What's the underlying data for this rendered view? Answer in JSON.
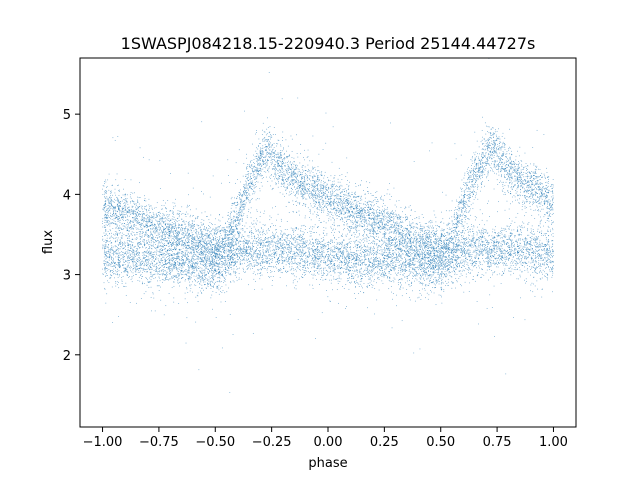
{
  "chart_data": {
    "type": "scatter",
    "title": "1SWASPJ084218.15-220940.3 Period 25144.44727s",
    "xlabel": "phase",
    "ylabel": "flux",
    "xlim": [
      -1.1,
      1.1
    ],
    "ylim": [
      1.1,
      5.7
    ],
    "xticks": [
      -1.0,
      -0.75,
      -0.5,
      -0.25,
      0.0,
      0.25,
      0.5,
      0.75,
      1.0
    ],
    "xtick_labels": [
      "−1.00",
      "−0.75",
      "−0.50",
      "−0.25",
      "0.00",
      "0.25",
      "0.50",
      "0.75",
      "1.00"
    ],
    "yticks": [
      2,
      3,
      4,
      5
    ],
    "ytick_labels": [
      "2",
      "3",
      "4",
      "5"
    ],
    "grid": false,
    "marker_color": "#1f77b4",
    "series": [
      {
        "component": "upper_branch",
        "x": [
          -1.0,
          -0.9,
          -0.8,
          -0.7,
          -0.6,
          -0.5,
          -0.45,
          -0.4,
          -0.35,
          -0.3,
          -0.27,
          -0.25,
          -0.2,
          -0.1,
          0.0,
          0.1,
          0.2,
          0.3,
          0.4,
          0.5,
          0.55,
          0.6,
          0.65,
          0.7,
          0.73,
          0.75,
          0.8,
          0.9,
          1.0
        ],
        "y": [
          3.85,
          3.75,
          3.65,
          3.55,
          3.45,
          3.35,
          3.4,
          3.75,
          4.15,
          4.45,
          4.55,
          4.5,
          4.3,
          4.1,
          3.95,
          3.8,
          3.7,
          3.55,
          3.4,
          3.35,
          3.45,
          3.85,
          4.25,
          4.5,
          4.55,
          4.5,
          4.3,
          4.1,
          3.9
        ]
      },
      {
        "component": "lower_branch",
        "x": [
          -1.0,
          -0.9,
          -0.8,
          -0.7,
          -0.6,
          -0.5,
          -0.4,
          -0.3,
          -0.2,
          -0.1,
          0.0,
          0.1,
          0.2,
          0.3,
          0.4,
          0.5,
          0.6,
          0.7,
          0.8,
          0.9,
          1.0
        ],
        "y": [
          3.25,
          3.2,
          3.2,
          3.18,
          3.12,
          3.1,
          3.3,
          3.32,
          3.3,
          3.28,
          3.25,
          3.2,
          3.18,
          3.18,
          3.12,
          3.1,
          3.3,
          3.32,
          3.3,
          3.28,
          3.25
        ]
      }
    ]
  }
}
